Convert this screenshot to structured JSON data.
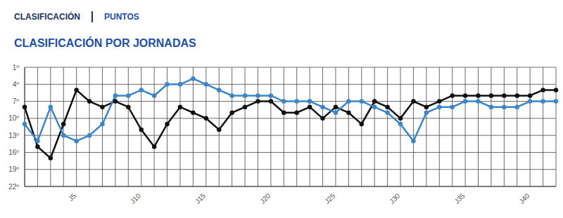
{
  "tabs": [
    "CLASIFICACIÓN",
    "PUNTOS"
  ],
  "chart_data": {
    "type": "line",
    "title": "CLASIFICACIÓN POR JORNADAS",
    "categories": [
      null,
      null,
      null,
      null,
      "J5",
      null,
      null,
      null,
      null,
      "J10",
      null,
      null,
      null,
      null,
      "J15",
      null,
      null,
      null,
      null,
      "J20",
      null,
      null,
      null,
      null,
      "J25",
      null,
      null,
      null,
      null,
      "J30",
      null,
      null,
      null,
      null,
      "J35",
      null,
      null,
      null,
      null,
      "J40",
      null,
      null
    ],
    "series": [
      {
        "color": "#111111",
        "marker": "circle",
        "line_style": "solid",
        "values": [
          8,
          15,
          17,
          11,
          5,
          7,
          8,
          7,
          8,
          12,
          15,
          11,
          8,
          9,
          10,
          12,
          9,
          8,
          7,
          7,
          9,
          9,
          8,
          10,
          8,
          9,
          11,
          7,
          8,
          10,
          7,
          8,
          7,
          6,
          6,
          6,
          6,
          6,
          6,
          6,
          5,
          5
        ]
      },
      {
        "color": "#3a86c8",
        "marker": "circle",
        "line_style": "solid",
        "values": [
          11,
          14,
          8,
          13,
          14,
          13,
          11,
          6,
          6,
          5,
          6,
          4,
          4,
          3,
          4,
          5,
          6,
          6,
          6,
          6,
          7,
          7,
          7,
          8,
          9,
          7,
          7,
          8,
          9,
          11,
          14,
          9,
          8,
          8,
          7,
          7,
          8,
          8,
          8,
          7,
          7,
          7
        ]
      }
    ],
    "ylim": [
      1,
      22
    ],
    "yticks": [
      {
        "value": 1,
        "label": "1º"
      },
      {
        "value": 4,
        "label": "4º"
      },
      {
        "value": 7,
        "label": "7º"
      },
      {
        "value": 10,
        "label": "10º"
      },
      {
        "value": 13,
        "label": "13º"
      },
      {
        "value": 16,
        "label": "16º"
      },
      {
        "value": 19,
        "label": "19º"
      },
      {
        "value": 22,
        "label": "22º"
      }
    ],
    "grid": true
  }
}
